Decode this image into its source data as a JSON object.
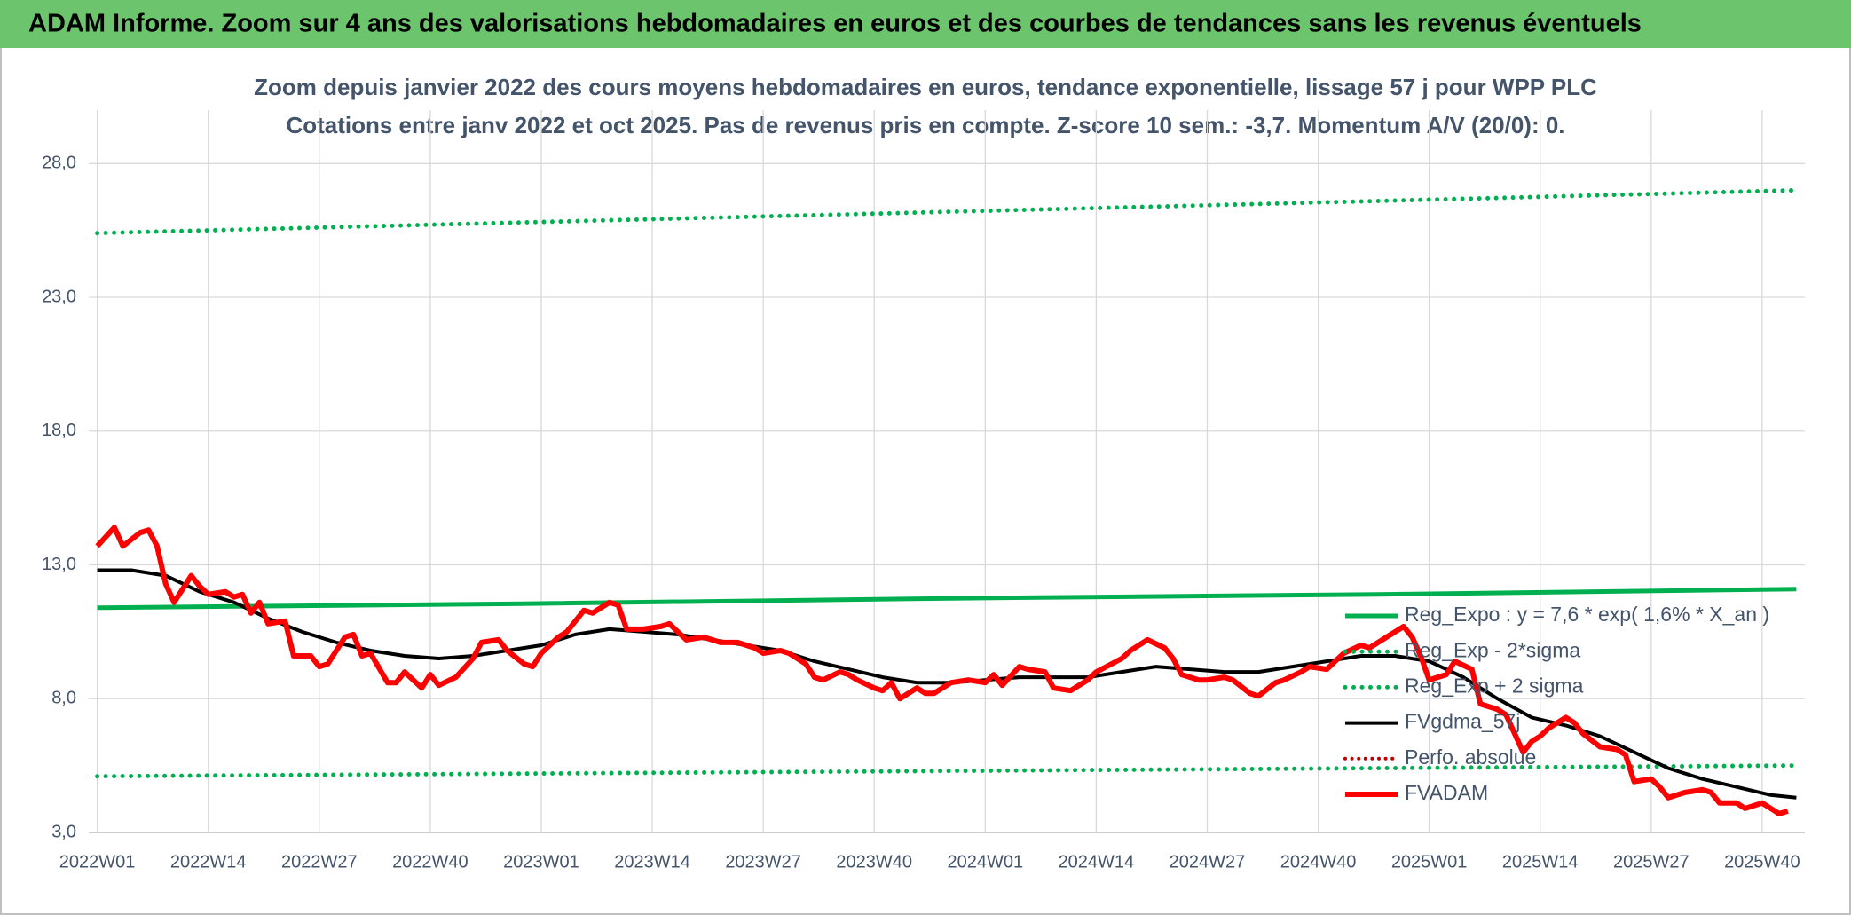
{
  "header": {
    "title": "ADAM Informe. Zoom sur 4 ans des valorisations hebdomadaires en euros et des courbes de tendances sans les revenus éventuels"
  },
  "chart_data": {
    "type": "line",
    "title": "Zoom depuis janvier 2022 des cours moyens hebdomadaires en euros, tendance exponentielle, lissage 57 j pour WPP PLC",
    "subtitle": "Cotations entre janv 2022 et oct 2025. Pas de revenus pris en compte. Z-score 10 sem.: -3,7. Momentum A/V (20/0): 0.",
    "xlim": [
      -1,
      200
    ],
    "xticks": [
      {
        "value": 0,
        "label": "2022W01"
      },
      {
        "value": 13,
        "label": "2022W14"
      },
      {
        "value": 26,
        "label": "2022W27"
      },
      {
        "value": 39,
        "label": "2022W40"
      },
      {
        "value": 52,
        "label": "2023W01"
      },
      {
        "value": 65,
        "label": "2023W14"
      },
      {
        "value": 78,
        "label": "2023W27"
      },
      {
        "value": 91,
        "label": "2023W40"
      },
      {
        "value": 104,
        "label": "2024W01"
      },
      {
        "value": 117,
        "label": "2024W14"
      },
      {
        "value": 130,
        "label": "2024W27"
      },
      {
        "value": 143,
        "label": "2024W40"
      },
      {
        "value": 156,
        "label": "2025W01"
      },
      {
        "value": 169,
        "label": "2025W14"
      },
      {
        "value": 182,
        "label": "2025W27"
      },
      {
        "value": 195,
        "label": "2025W40"
      }
    ],
    "ylim": [
      3,
      30
    ],
    "yticks": [
      {
        "value": 3,
        "label": "3,0"
      },
      {
        "value": 8,
        "label": "8,0"
      },
      {
        "value": 13,
        "label": "13,0"
      },
      {
        "value": 18,
        "label": "18,0"
      },
      {
        "value": 23,
        "label": "23,0"
      },
      {
        "value": 28,
        "label": "28,0"
      }
    ],
    "grid": true,
    "legend": "right",
    "series": [
      {
        "name": "Reg_Expo : y = 7,6 * exp( 1,6% *  X_an )",
        "color": "#00b050",
        "style": "solid",
        "width": 5,
        "x": [
          0,
          50,
          100,
          150,
          199
        ],
        "values": [
          11.4,
          11.55,
          11.75,
          11.9,
          12.1
        ]
      },
      {
        "name": "Reg_Exp - 2*sigma",
        "color": "#00b050",
        "style": "dotted",
        "width": 5,
        "x": [
          0,
          50,
          100,
          150,
          199
        ],
        "values": [
          5.1,
          5.2,
          5.3,
          5.4,
          5.5
        ]
      },
      {
        "name": "Reg_Exp + 2 sigma",
        "color": "#00b050",
        "style": "dotted",
        "width": 5,
        "x": [
          0,
          50,
          100,
          150,
          199
        ],
        "values": [
          25.4,
          25.8,
          26.2,
          26.6,
          27.0
        ]
      },
      {
        "name": "FVgdma_57j",
        "color": "#000000",
        "style": "solid",
        "width": 4,
        "x": [
          0,
          4,
          8,
          12,
          16,
          20,
          24,
          28,
          32,
          36,
          40,
          44,
          48,
          52,
          56,
          60,
          64,
          68,
          72,
          76,
          80,
          84,
          88,
          92,
          96,
          100,
          104,
          108,
          112,
          116,
          120,
          124,
          128,
          132,
          136,
          140,
          144,
          148,
          152,
          156,
          160,
          164,
          168,
          172,
          176,
          180,
          184,
          188,
          192,
          196,
          199
        ],
        "values": [
          12.8,
          12.8,
          12.6,
          12.0,
          11.6,
          11.0,
          10.5,
          10.1,
          9.8,
          9.6,
          9.5,
          9.6,
          9.8,
          10.0,
          10.4,
          10.6,
          10.5,
          10.4,
          10.2,
          10.0,
          9.8,
          9.4,
          9.1,
          8.8,
          8.6,
          8.6,
          8.7,
          8.8,
          8.8,
          8.8,
          9.0,
          9.2,
          9.1,
          9.0,
          9.0,
          9.2,
          9.4,
          9.6,
          9.6,
          9.4,
          8.8,
          8.0,
          7.3,
          7.0,
          6.6,
          6.0,
          5.4,
          5.0,
          4.7,
          4.4,
          4.3
        ]
      },
      {
        "name": "Perfo. absolue",
        "color": "#c00000",
        "style": "dotted",
        "width": 4,
        "x": [],
        "values": []
      },
      {
        "name": "FVADAM",
        "color": "#ff0000",
        "style": "solid",
        "width": 6,
        "x": [
          0,
          2,
          3,
          5,
          6,
          7,
          8,
          9,
          11,
          12,
          13,
          15,
          16,
          17,
          18,
          19,
          20,
          22,
          23,
          25,
          26,
          27,
          29,
          30,
          31,
          32,
          34,
          35,
          36,
          37,
          38,
          39,
          40,
          42,
          44,
          45,
          47,
          48,
          50,
          51,
          52,
          54,
          55,
          57,
          58,
          60,
          61,
          62,
          64,
          66,
          67,
          68,
          69,
          71,
          73,
          75,
          77,
          78,
          80,
          81,
          83,
          84,
          85,
          87,
          88,
          89,
          91,
          92,
          93,
          94,
          96,
          97,
          98,
          100,
          102,
          104,
          105,
          106,
          108,
          109,
          111,
          112,
          114,
          116,
          117,
          120,
          121,
          123,
          125,
          126,
          127,
          129,
          130,
          132,
          133,
          135,
          136,
          138,
          139,
          141,
          142,
          144,
          146,
          148,
          149,
          151,
          153,
          154,
          155,
          156,
          158,
          159,
          161,
          162,
          164,
          165,
          167,
          168,
          169,
          170,
          172,
          173,
          174,
          176,
          178,
          179,
          180,
          182,
          183,
          184,
          186,
          188,
          189,
          190,
          192,
          193,
          195,
          196,
          197,
          198
        ],
        "values": [
          13.7,
          14.4,
          13.7,
          14.2,
          14.3,
          13.7,
          12.3,
          11.6,
          12.6,
          12.2,
          11.9,
          12.0,
          11.8,
          11.9,
          11.2,
          11.6,
          10.8,
          10.9,
          9.6,
          9.6,
          9.2,
          9.3,
          10.3,
          10.4,
          9.6,
          9.7,
          8.6,
          8.6,
          9.0,
          8.7,
          8.4,
          8.9,
          8.5,
          8.8,
          9.5,
          10.1,
          10.2,
          9.8,
          9.3,
          9.2,
          9.7,
          10.3,
          10.5,
          11.3,
          11.2,
          11.6,
          11.5,
          10.6,
          10.6,
          10.7,
          10.8,
          10.5,
          10.2,
          10.3,
          10.1,
          10.1,
          9.9,
          9.7,
          9.8,
          9.7,
          9.3,
          8.8,
          8.7,
          9.0,
          8.9,
          8.7,
          8.4,
          8.3,
          8.6,
          8.0,
          8.4,
          8.2,
          8.2,
          8.6,
          8.7,
          8.6,
          8.9,
          8.5,
          9.2,
          9.1,
          9.0,
          8.4,
          8.3,
          8.7,
          9.0,
          9.5,
          9.8,
          10.2,
          9.9,
          9.5,
          8.9,
          8.7,
          8.7,
          8.8,
          8.7,
          8.2,
          8.1,
          8.6,
          8.7,
          9.0,
          9.2,
          9.1,
          9.7,
          10.0,
          9.9,
          10.3,
          10.7,
          10.3,
          9.6,
          8.7,
          8.9,
          9.4,
          9.1,
          7.8,
          7.6,
          7.4,
          6.0,
          6.4,
          6.6,
          6.9,
          7.3,
          7.1,
          6.7,
          6.2,
          6.1,
          5.9,
          4.9,
          5.0,
          4.7,
          4.3,
          4.5,
          4.6,
          4.5,
          4.1,
          4.1,
          3.9,
          4.1,
          3.9,
          3.7,
          3.8
        ]
      }
    ]
  }
}
